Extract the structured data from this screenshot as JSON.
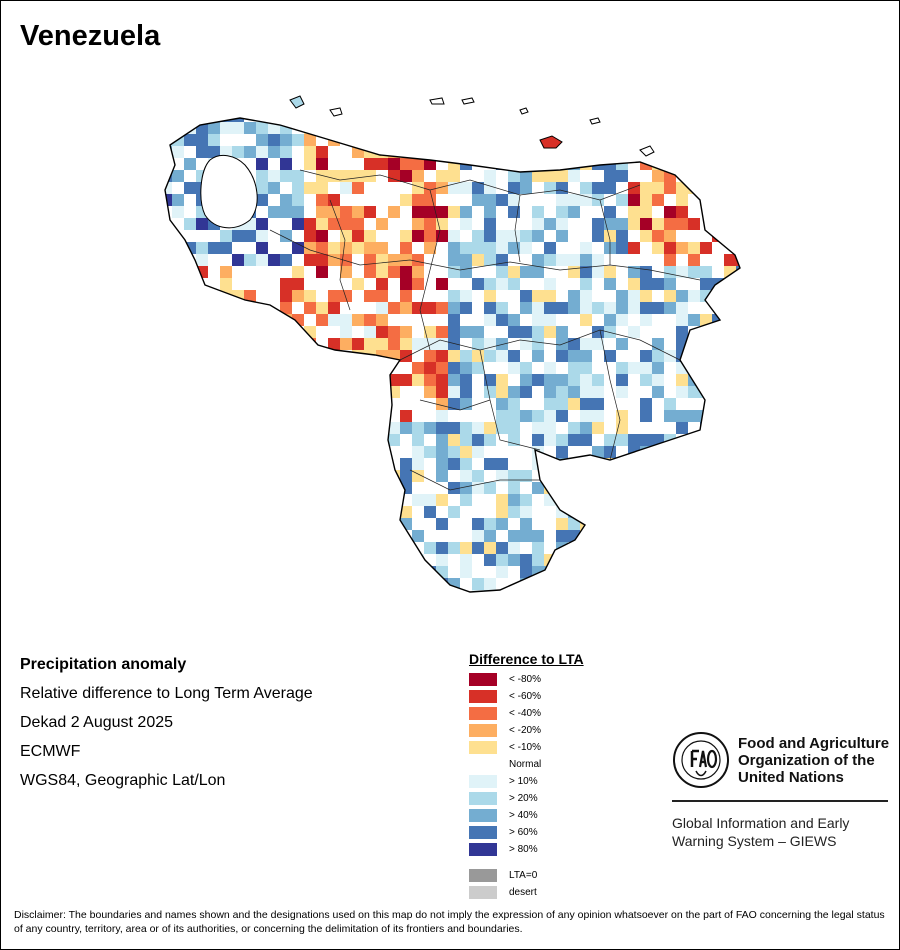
{
  "title": "Venezuela",
  "info": {
    "heading": "Precipitation anomaly",
    "subtitle": "Relative difference to Long Term Average",
    "period": "Dekad 2 August 2025",
    "source": "ECMWF",
    "projection": "WGS84, Geographic Lat/Lon"
  },
  "legend": {
    "title": "Difference to LTA",
    "items": [
      {
        "label": "< -80%",
        "color": "#a50026"
      },
      {
        "label": "< -60%",
        "color": "#d73027"
      },
      {
        "label": "< -40%",
        "color": "#f46d43"
      },
      {
        "label": "< -20%",
        "color": "#fdae61"
      },
      {
        "label": "< -10%",
        "color": "#fee090"
      },
      {
        "label": "Normal",
        "color": "#ffffff"
      },
      {
        "label": "> 10%",
        "color": "#e0f3f8"
      },
      {
        "label": "> 20%",
        "color": "#abd9e9"
      },
      {
        "label": "> 40%",
        "color": "#74add1"
      },
      {
        "label": "> 60%",
        "color": "#4575b4"
      },
      {
        "label": "> 80%",
        "color": "#313695"
      }
    ],
    "extra": [
      {
        "label": "LTA=0",
        "color": "#999999"
      },
      {
        "label": "desert",
        "color": "#cccccc"
      }
    ]
  },
  "fao": {
    "name_line1": "Food and Agriculture",
    "name_line2": "Organization of the",
    "name_line3": "United Nations",
    "giews_line1": "Global Information and Early",
    "giews_line2": "Warning System – GIEWS"
  },
  "disclaimer": "Disclaimer: The boundaries and names shown and the designations used on this map do not imply the expression of any opinion whatsoever on the part of FAO concerning the legal status of any country, territory, area or of its authorities, or concerning the delimitation of its frontiers and boundaries."
}
